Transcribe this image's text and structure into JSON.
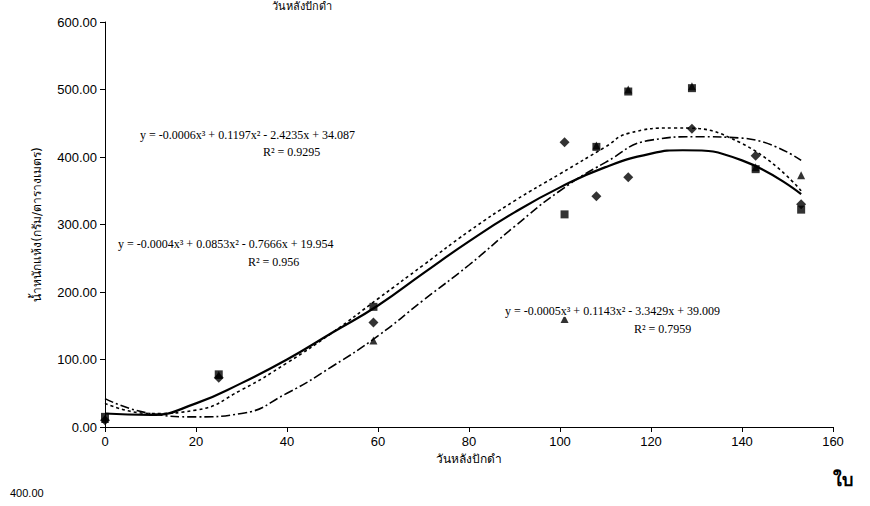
{
  "chart_data": {
    "type": "scatter",
    "x_label": "วันหลังปักดำ",
    "y_label": "น้ำหนักแห้ง(กรัม/ตารางเมตร)",
    "xlim": [
      0,
      160
    ],
    "xticks": [
      0,
      20,
      40,
      60,
      80,
      100,
      120,
      140,
      160
    ],
    "ylim": [
      0,
      600
    ],
    "yticks": [
      {
        "value": 0,
        "label": "0.00"
      },
      {
        "value": 100,
        "label": "100.00"
      },
      {
        "value": 200,
        "label": "200.00"
      },
      {
        "value": 300,
        "label": "300.00"
      },
      {
        "value": 400,
        "label": "400.00"
      },
      {
        "value": 500,
        "label": "500.00"
      },
      {
        "value": 600,
        "label": "600.00"
      }
    ],
    "grid": false,
    "series": [
      {
        "type": "scatter",
        "marker": "square",
        "color": "#000000",
        "x": [
          0,
          25,
          59,
          101,
          108,
          115,
          129,
          143,
          153
        ],
        "values": [
          15,
          78,
          178,
          315,
          415,
          497,
          502,
          382,
          322
        ]
      },
      {
        "type": "scatter",
        "marker": "diamond",
        "color": "#000000",
        "x": [
          0,
          25,
          59,
          101,
          108,
          115,
          129,
          143,
          153
        ],
        "values": [
          10,
          73,
          155,
          422,
          342,
          370,
          442,
          402,
          330
        ]
      },
      {
        "type": "scatter",
        "marker": "triangle",
        "color": "#000000",
        "x": [
          0,
          25,
          59,
          101,
          108,
          115,
          129,
          143,
          153
        ],
        "values": [
          12,
          77,
          128,
          160,
          417,
          500,
          505,
          385,
          373
        ]
      },
      {
        "type": "line",
        "line_style": "solid",
        "color": "#000000",
        "x": [
          0,
          10,
          20,
          30,
          40,
          50,
          60,
          70,
          80,
          90,
          100,
          110,
          120,
          127,
          140,
          153
        ],
        "values": [
          20,
          18,
          35,
          65,
          100,
          140,
          180,
          228,
          275,
          318,
          355,
          385,
          405,
          410,
          395,
          345
        ]
      },
      {
        "type": "line",
        "line_style": "dotted",
        "color": "#000000",
        "x": [
          0,
          10,
          20,
          30,
          40,
          50,
          60,
          70,
          80,
          90,
          100,
          110,
          115,
          125,
          140,
          153
        ],
        "values": [
          35,
          20,
          25,
          55,
          95,
          140,
          190,
          240,
          290,
          335,
          375,
          415,
          435,
          443,
          420,
          350
        ]
      },
      {
        "type": "line",
        "line_style": "dashdot",
        "color": "#000000",
        "x": [
          0,
          10,
          20,
          30,
          40,
          50,
          60,
          70,
          80,
          90,
          100,
          110,
          120,
          130,
          140,
          153
        ],
        "values": [
          42,
          20,
          15,
          20,
          50,
          90,
          135,
          188,
          240,
          297,
          350,
          392,
          425,
          430,
          428,
          395
        ]
      }
    ],
    "annotations": [
      "y = -0.0006x³ + 0.1197x² - 2.4235x + 34.087",
      "R² = 0.9295",
      "y = -0.0004x³ + 0.0853x² - 0.7666x + 19.954",
      "R² = 0.956",
      "y = -0.0005x³ + 0.1143x² - 3.3429x + 39.009",
      "R² = 0.7959",
      "วันหลังปักดำ",
      "400.00",
      "ใบ"
    ]
  }
}
